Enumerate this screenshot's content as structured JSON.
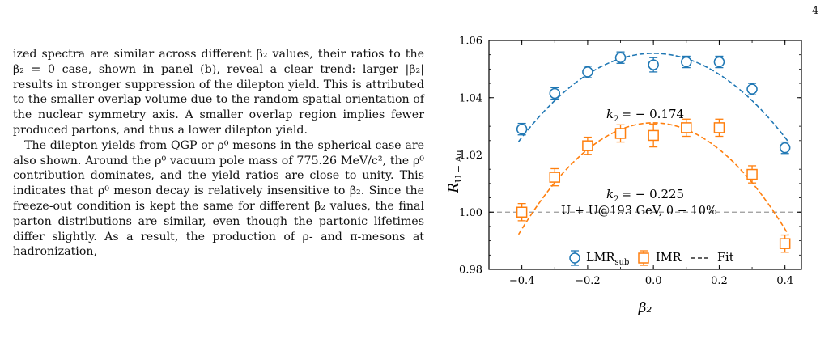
{
  "page_number": "4",
  "text": {
    "p1": "ized spectra are similar across different β₂ values, their ratios to the β₂ = 0 case, shown in panel (b), reveal a clear trend: larger |β₂| results in stronger suppression of the dilepton yield. This is attributed to the smaller overlap volume due to the random spatial orientation of the nuclear symmetry axis. A smaller overlap region implies fewer produced partons, and thus a lower dilepton yield.",
    "p2": "The dilepton yields from QGP or ρ⁰ mesons in the spherical case are also shown. Around the ρ⁰ vacuum pole mass of 775.26 MeV/c², the ρ⁰ contribution dominates, and the yield ratios are close to unity. This indicates that ρ⁰ meson decay is relatively insensitive to β₂. Since the freeze-out condition is kept the same for different β₂ values, the final parton distributions are similar, even though the partonic lifetimes differ slightly. As a result, the production of ρ- and π-mesons at hadronization,"
  },
  "chart_data": {
    "type": "scatter",
    "xlabel": "β₂",
    "ylabel": "R_U-Au",
    "xlim": [
      -0.5,
      0.45
    ],
    "ylim": [
      0.98,
      1.06
    ],
    "xticks": [
      -0.4,
      -0.2,
      0.0,
      0.2,
      0.4
    ],
    "xtick_labels": [
      "−0.4",
      "−0.2",
      "0.0",
      "0.2",
      "0.4"
    ],
    "yticks": [
      0.98,
      1.0,
      1.02,
      1.04,
      1.06
    ],
    "ytick_labels": [
      "0.98",
      "1.00",
      "1.02",
      "1.04",
      "1.06"
    ],
    "reference_line": 1.0,
    "colors": {
      "lmr": "#1f77b4",
      "imr": "#ff7f0e",
      "ref": "#999999"
    },
    "annotation": "U + U@193 GeV,  0 − 10%",
    "legend": {
      "lmr": "LMR",
      "lmr_sub": "sub",
      "imr": "IMR",
      "fit": "Fit"
    },
    "k2_prefix": "k",
    "k2_sub": "2",
    "series": [
      {
        "name": "LMR_sub",
        "marker": "circle",
        "x": [
          -0.4,
          -0.3,
          -0.2,
          -0.1,
          0.0,
          0.1,
          0.2,
          0.3,
          0.4
        ],
        "y": [
          1.029,
          1.0415,
          1.049,
          1.054,
          1.0515,
          1.0525,
          1.0525,
          1.043,
          1.0225
        ],
        "err": [
          0.002,
          0.002,
          0.002,
          0.002,
          0.0025,
          0.002,
          0.002,
          0.002,
          0.002
        ],
        "fit_k2": "= − 0.174",
        "fit": {
          "a": 1.0555,
          "k": -0.174
        }
      },
      {
        "name": "IMR",
        "marker": "square",
        "x": [
          -0.4,
          -0.3,
          -0.2,
          -0.1,
          0.0,
          0.1,
          0.2,
          0.3,
          0.4
        ],
        "y": [
          1.0,
          1.0122,
          1.0232,
          1.0275,
          1.0268,
          1.0295,
          1.0295,
          1.0132,
          0.989
        ],
        "err": [
          0.003,
          0.003,
          0.003,
          0.003,
          0.004,
          0.003,
          0.003,
          0.003,
          0.003
        ],
        "fit_k2": "= − 0.225",
        "fit": {
          "a": 1.0312,
          "k": -0.225
        }
      }
    ]
  }
}
